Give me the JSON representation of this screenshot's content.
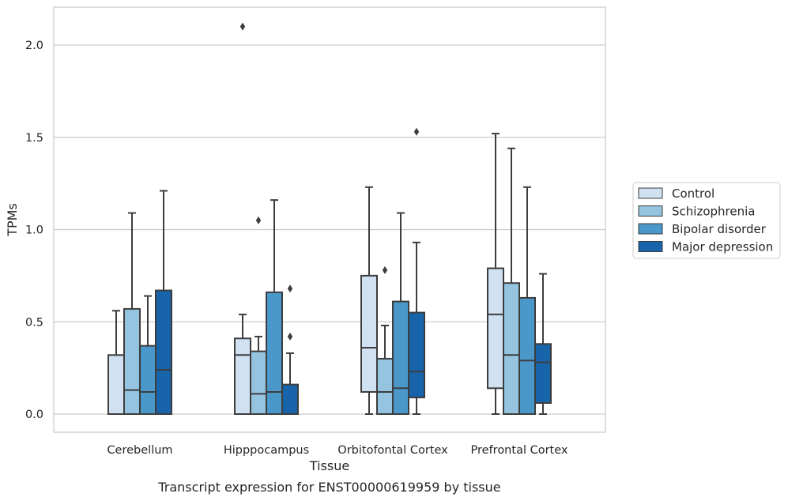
{
  "caption": "Transcript expression for ENST00000619959 by tissue",
  "chart_data": {
    "type": "box",
    "xlabel": "Tissue",
    "ylabel": "TPMs",
    "ylim": [
      -0.1,
      2.22
    ],
    "yticks": [
      "0.0",
      "0.5",
      "1.0",
      "1.5",
      "2.0"
    ],
    "grid": "horizontal",
    "legend_position": "right",
    "categories": [
      "Cerebellum",
      "Hipppocampus",
      "Orbitofontal Cortex",
      "Prefrontal Cortex"
    ],
    "series": [
      {
        "name": "Control",
        "color": "#d0e1f2",
        "boxes": [
          {
            "whislo": 0,
            "q1": 0,
            "med": 0,
            "q3": 0.32,
            "whishi": 0.56,
            "fliers": []
          },
          {
            "whislo": 0,
            "q1": 0,
            "med": 0.32,
            "q3": 0.41,
            "whishi": 0.54,
            "fliers": [
              2.1
            ]
          },
          {
            "whislo": 0,
            "q1": 0.12,
            "med": 0.36,
            "q3": 0.75,
            "whishi": 1.23,
            "fliers": []
          },
          {
            "whislo": 0,
            "q1": 0.14,
            "med": 0.54,
            "q3": 0.79,
            "whishi": 1.52,
            "fliers": []
          }
        ]
      },
      {
        "name": "Schizophrenia",
        "color": "#94c4df",
        "boxes": [
          {
            "whislo": 0,
            "q1": 0,
            "med": 0.13,
            "q3": 0.57,
            "whishi": 1.09,
            "fliers": []
          },
          {
            "whislo": 0,
            "q1": 0,
            "med": 0.11,
            "q3": 0.34,
            "whishi": 0.42,
            "fliers": [
              1.05
            ]
          },
          {
            "whislo": 0,
            "q1": 0,
            "med": 0.12,
            "q3": 0.3,
            "whishi": 0.48,
            "fliers": [
              0.78
            ]
          },
          {
            "whislo": 0,
            "q1": 0,
            "med": 0.32,
            "q3": 0.71,
            "whishi": 1.44,
            "fliers": []
          }
        ]
      },
      {
        "name": "Bipolar disorder",
        "color": "#4a98c9",
        "boxes": [
          {
            "whislo": 0,
            "q1": 0,
            "med": 0.12,
            "q3": 0.37,
            "whishi": 0.64,
            "fliers": []
          },
          {
            "whislo": 0,
            "q1": 0,
            "med": 0.12,
            "q3": 0.66,
            "whishi": 1.16,
            "fliers": []
          },
          {
            "whislo": 0,
            "q1": 0,
            "med": 0.14,
            "q3": 0.61,
            "whishi": 1.09,
            "fliers": []
          },
          {
            "whislo": 0,
            "q1": 0,
            "med": 0.29,
            "q3": 0.63,
            "whishi": 1.23,
            "fliers": []
          }
        ]
      },
      {
        "name": "Major depression",
        "color": "#1764ab",
        "boxes": [
          {
            "whislo": 0,
            "q1": 0,
            "med": 0.24,
            "q3": 0.67,
            "whishi": 1.21,
            "fliers": []
          },
          {
            "whislo": 0,
            "q1": 0,
            "med": 0,
            "q3": 0.16,
            "whishi": 0.33,
            "fliers": [
              0.42,
              0.68
            ]
          },
          {
            "whislo": 0,
            "q1": 0.09,
            "med": 0.23,
            "q3": 0.55,
            "whishi": 0.93,
            "fliers": [
              1.53
            ]
          },
          {
            "whislo": 0,
            "q1": 0.06,
            "med": 0.28,
            "q3": 0.38,
            "whishi": 0.76,
            "fliers": []
          }
        ]
      }
    ]
  }
}
